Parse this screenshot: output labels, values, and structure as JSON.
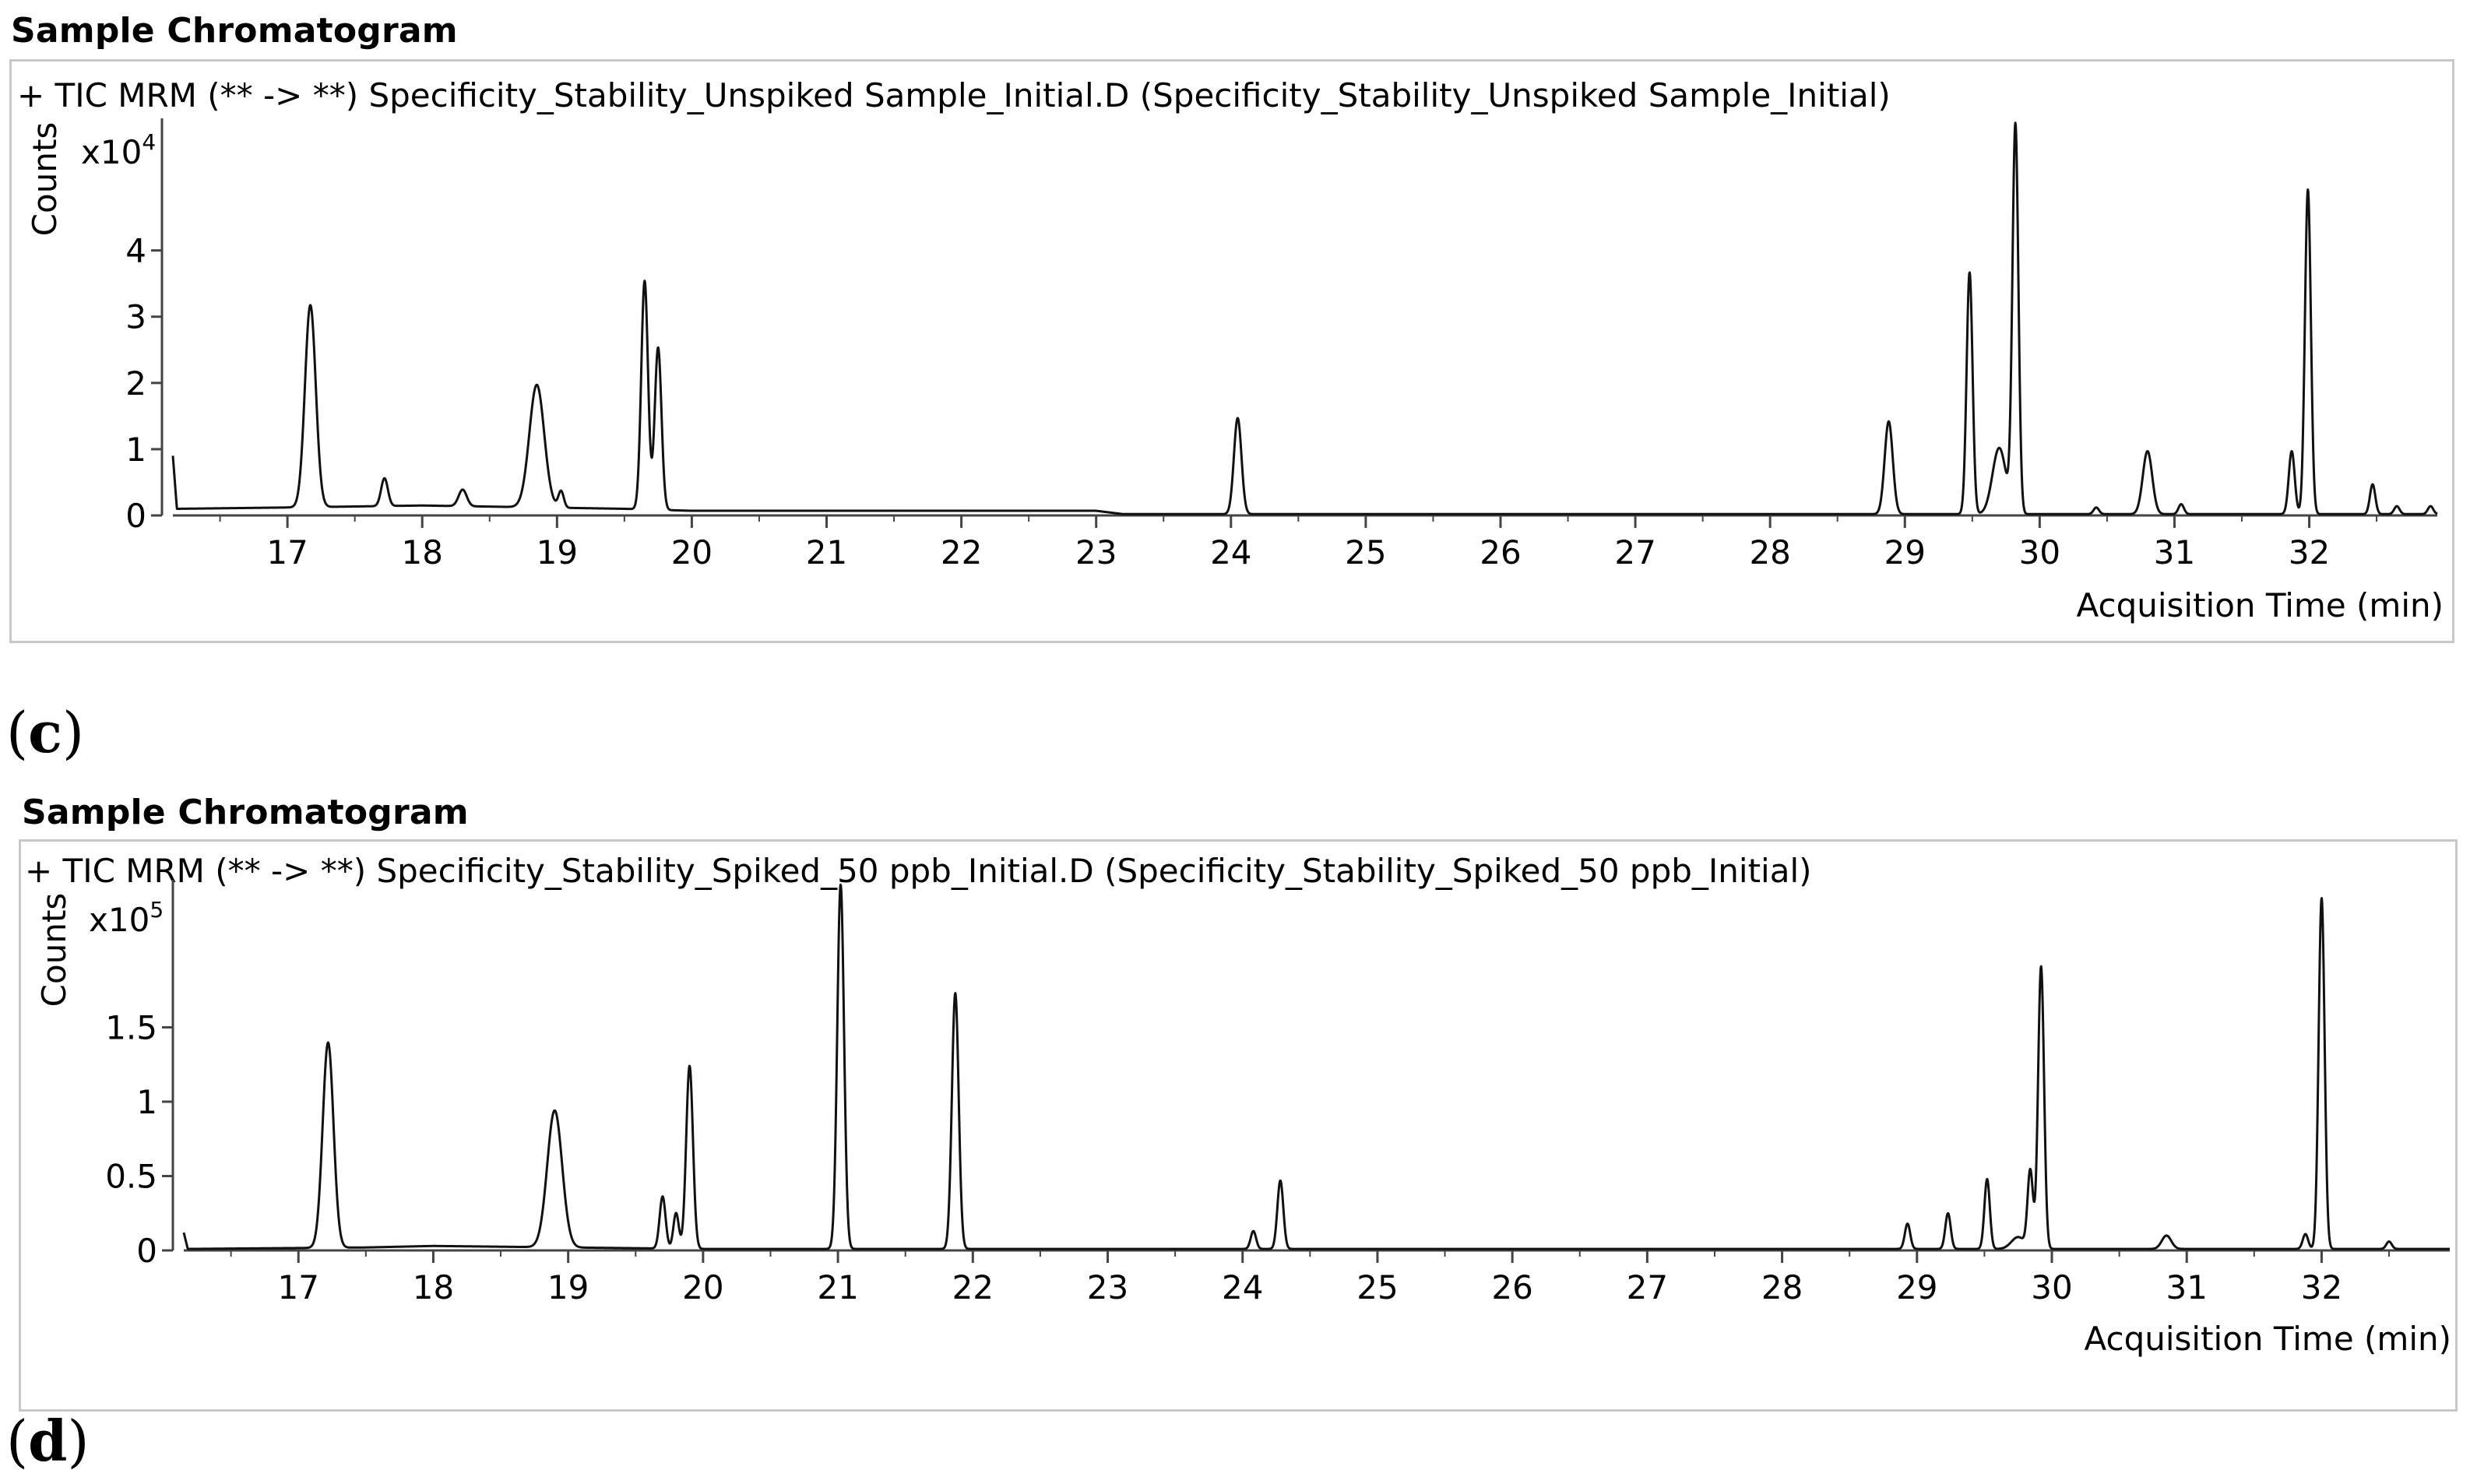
{
  "panels": [
    {
      "letter": "c",
      "title": "Sample Chromatogram",
      "trace_label": "+ TIC MRM (** -> **) Specificity_Stability_Unspiked Sample_Initial.D (Specificity_Stability_Unspiked Sample_Initial)",
      "ylabel": "Counts",
      "multiplier": "x10",
      "exponent": "4",
      "xlabel": "Acquisition Time (min)"
    },
    {
      "letter": "d",
      "title": "Sample Chromatogram",
      "trace_label": "+ TIC MRM (** -> **) Specificity_Stability_Spiked_50 ppb_Initial.D (Specificity_Stability_Spiked_50 ppb_Initial)",
      "ylabel": "Counts",
      "multiplier": "x10",
      "exponent": "5",
      "xlabel": "Acquisition Time (min)"
    }
  ],
  "chart_data": [
    {
      "type": "line",
      "title": "Sample Chromatogram",
      "subtitle": "+ TIC MRM (** -> **) Specificity_Stability_Unspiked Sample_Initial.D (Specificity_Stability_Unspiked Sample_Initial)",
      "xlabel": "Acquisition Time (min)",
      "ylabel": "Counts",
      "y_multiplier": "x10^4",
      "xlim": [
        16.15,
        32.95
      ],
      "ylim": [
        0,
        5.9
      ],
      "x_ticks": [
        17,
        18,
        19,
        20,
        21,
        22,
        23,
        24,
        25,
        26,
        27,
        28,
        29,
        30,
        31,
        32
      ],
      "y_ticks": [
        0,
        1,
        2,
        3,
        4
      ],
      "grid": false,
      "baseline": [
        [
          16.15,
          0.9
        ],
        [
          16.18,
          0.1
        ],
        [
          17.0,
          0.12
        ],
        [
          18.0,
          0.15
        ],
        [
          19.5,
          0.1
        ],
        [
          20.0,
          0.07
        ],
        [
          23.0,
          0.07
        ],
        [
          23.2,
          0.02
        ],
        [
          32.95,
          0.02
        ]
      ],
      "peaks": [
        {
          "rt": 17.17,
          "height": 3.05,
          "width": 0.04
        },
        {
          "rt": 17.72,
          "height": 0.42,
          "width": 0.025
        },
        {
          "rt": 18.3,
          "height": 0.25,
          "width": 0.03
        },
        {
          "rt": 18.85,
          "height": 1.85,
          "width": 0.055
        },
        {
          "rt": 19.03,
          "height": 0.25,
          "width": 0.02
        },
        {
          "rt": 19.65,
          "height": 3.45,
          "width": 0.025
        },
        {
          "rt": 19.75,
          "height": 2.45,
          "width": 0.025
        },
        {
          "rt": 24.05,
          "height": 1.45,
          "width": 0.028
        },
        {
          "rt": 28.88,
          "height": 1.4,
          "width": 0.03
        },
        {
          "rt": 29.48,
          "height": 3.65,
          "width": 0.022
        },
        {
          "rt": 29.7,
          "height": 1.0,
          "width": 0.05
        },
        {
          "rt": 29.82,
          "height": 5.85,
          "width": 0.022
        },
        {
          "rt": 30.42,
          "height": 0.1,
          "width": 0.02
        },
        {
          "rt": 30.8,
          "height": 0.95,
          "width": 0.035
        },
        {
          "rt": 31.05,
          "height": 0.15,
          "width": 0.02
        },
        {
          "rt": 31.87,
          "height": 0.95,
          "width": 0.022
        },
        {
          "rt": 31.99,
          "height": 4.9,
          "width": 0.022
        },
        {
          "rt": 32.47,
          "height": 0.45,
          "width": 0.02
        },
        {
          "rt": 32.65,
          "height": 0.12,
          "width": 0.02
        },
        {
          "rt": 32.9,
          "height": 0.12,
          "width": 0.02
        }
      ]
    },
    {
      "type": "line",
      "title": "Sample Chromatogram",
      "subtitle": "+ TIC MRM (** -> **) Specificity_Stability_Spiked_50 ppb_Initial.D (Specificity_Stability_Spiked_50 ppb_Initial)",
      "xlabel": "Acquisition Time (min)",
      "ylabel": "Counts",
      "y_multiplier": "x10^5",
      "xlim": [
        16.15,
        32.95
      ],
      "ylim": [
        0,
        2.45
      ],
      "x_ticks": [
        17,
        18,
        19,
        20,
        21,
        22,
        23,
        24,
        25,
        26,
        27,
        28,
        29,
        30,
        31,
        32
      ],
      "y_ticks": [
        0,
        0.5,
        1,
        1.5
      ],
      "y_tick_labels": [
        "0",
        "0.5",
        "1",
        "1.5"
      ],
      "grid": false,
      "baseline": [
        [
          16.15,
          0.12
        ],
        [
          16.18,
          0.01
        ],
        [
          17.5,
          0.02
        ],
        [
          18.0,
          0.03
        ],
        [
          19.0,
          0.02
        ],
        [
          20.0,
          0.01
        ],
        [
          32.95,
          0.01
        ]
      ],
      "peaks": [
        {
          "rt": 17.22,
          "height": 1.38,
          "width": 0.04
        },
        {
          "rt": 18.9,
          "height": 0.92,
          "width": 0.055
        },
        {
          "rt": 19.7,
          "height": 0.35,
          "width": 0.022
        },
        {
          "rt": 19.8,
          "height": 0.24,
          "width": 0.02
        },
        {
          "rt": 19.9,
          "height": 1.23,
          "width": 0.025
        },
        {
          "rt": 21.02,
          "height": 2.45,
          "width": 0.025
        },
        {
          "rt": 21.87,
          "height": 1.72,
          "width": 0.025
        },
        {
          "rt": 24.08,
          "height": 0.12,
          "width": 0.02
        },
        {
          "rt": 24.28,
          "height": 0.46,
          "width": 0.022
        },
        {
          "rt": 28.93,
          "height": 0.17,
          "width": 0.02
        },
        {
          "rt": 29.23,
          "height": 0.24,
          "width": 0.02
        },
        {
          "rt": 29.52,
          "height": 0.47,
          "width": 0.02
        },
        {
          "rt": 29.75,
          "height": 0.08,
          "width": 0.05
        },
        {
          "rt": 29.84,
          "height": 0.52,
          "width": 0.02
        },
        {
          "rt": 29.92,
          "height": 1.9,
          "width": 0.022
        },
        {
          "rt": 30.85,
          "height": 0.09,
          "width": 0.035
        },
        {
          "rt": 31.88,
          "height": 0.1,
          "width": 0.02
        },
        {
          "rt": 32.0,
          "height": 2.36,
          "width": 0.022
        },
        {
          "rt": 32.5,
          "height": 0.05,
          "width": 0.02
        }
      ]
    }
  ]
}
